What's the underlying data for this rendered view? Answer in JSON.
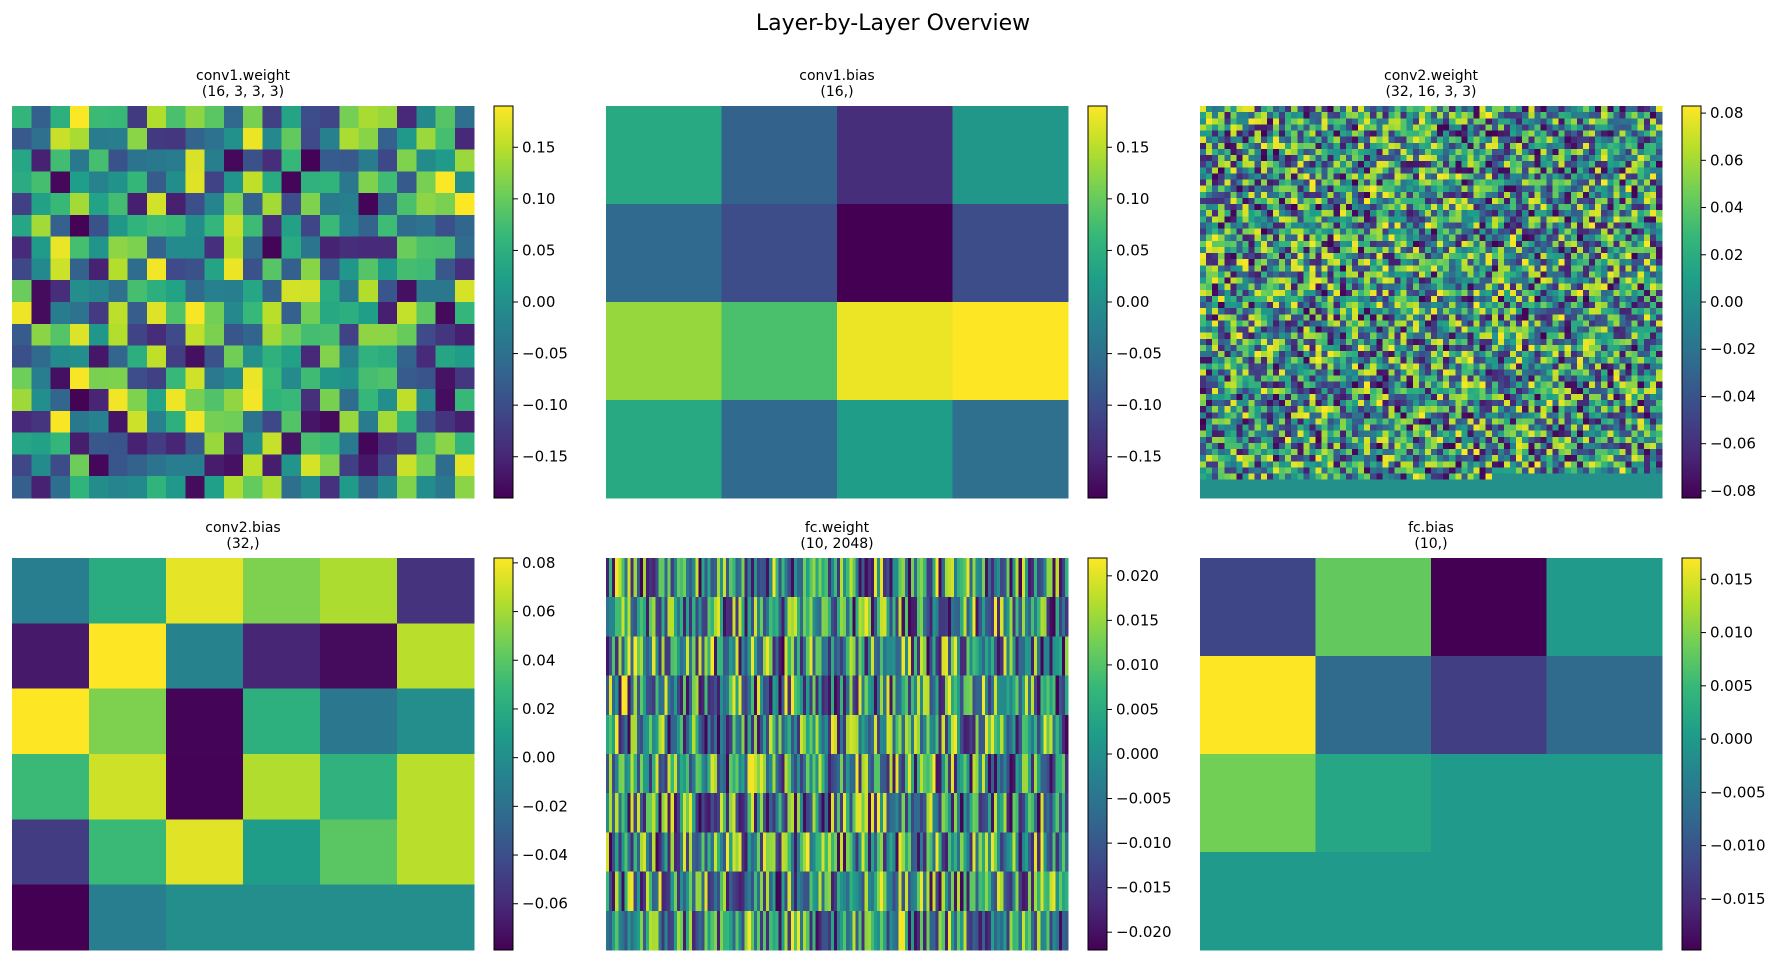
{
  "figure": {
    "title": "Layer-by-Layer Overview"
  },
  "colormap": {
    "name": "viridis",
    "stops": [
      "#440154",
      "#482878",
      "#3e4989",
      "#31688e",
      "#26828e",
      "#1f9e89",
      "#35b779",
      "#6ece58",
      "#b5de2b",
      "#fde725"
    ]
  },
  "chart_data": [
    {
      "type": "heatmap",
      "title": "conv1.weight",
      "subtitle": "(16, 3, 3, 3)",
      "grid": {
        "rows": 18,
        "cols": 24,
        "filled_cells": 432
      },
      "value_range": [
        -0.19,
        0.19
      ],
      "colorbar_ticks": [
        0.15,
        0.1,
        0.05,
        0.0,
        -0.05,
        -0.1,
        -0.15
      ],
      "colorbar_labels": [
        "0.15",
        "0.10",
        "0.05",
        "0.00",
        "−0.05",
        "−0.10",
        "−0.15"
      ],
      "values": "random"
    },
    {
      "type": "heatmap",
      "title": "conv1.bias",
      "subtitle": "(16,)",
      "grid": {
        "rows": 4,
        "cols": 4,
        "filled_cells": 16
      },
      "value_range": [
        -0.19,
        0.19
      ],
      "colorbar_ticks": [
        0.15,
        0.1,
        0.05,
        0.0,
        -0.05,
        -0.1,
        -0.15
      ],
      "colorbar_labels": [
        "0.15",
        "0.10",
        "0.05",
        "0.00",
        "−0.05",
        "−0.10",
        "−0.15"
      ],
      "values": [
        [
          0.04,
          -0.07,
          -0.14,
          0.01
        ],
        [
          -0.06,
          -0.1,
          -0.19,
          -0.1
        ],
        [
          0.13,
          0.08,
          0.18,
          0.19
        ],
        [
          0.04,
          -0.06,
          0.02,
          -0.05
        ]
      ]
    },
    {
      "type": "heatmap",
      "title": "conv2.weight",
      "subtitle": "(32, 16, 3, 3)",
      "grid": {
        "rows": 64,
        "cols": 76,
        "filled_cells": 4608
      },
      "value_range": [
        -0.083,
        0.083
      ],
      "colorbar_ticks": [
        0.08,
        0.06,
        0.04,
        0.02,
        0.0,
        -0.02,
        -0.04,
        -0.06,
        -0.08
      ],
      "colorbar_labels": [
        "0.08",
        "0.06",
        "0.04",
        "0.02",
        "0.00",
        "−0.02",
        "−0.04",
        "−0.06",
        "−0.08"
      ],
      "values": "random"
    },
    {
      "type": "heatmap",
      "title": "conv2.bias",
      "subtitle": "(32,)",
      "grid": {
        "rows": 6,
        "cols": 6,
        "filled_cells": 32
      },
      "value_range": [
        -0.079,
        0.082
      ],
      "colorbar_ticks": [
        0.08,
        0.06,
        0.04,
        0.02,
        0.0,
        -0.02,
        -0.04,
        -0.06
      ],
      "colorbar_labels": [
        "0.08",
        "0.06",
        "0.04",
        "0.02",
        "0.00",
        "−0.02",
        "−0.04",
        "−0.06"
      ],
      "values": [
        [
          -0.01,
          0.02,
          0.076,
          0.05,
          0.062,
          -0.055
        ],
        [
          -0.068,
          0.082,
          -0.007,
          -0.062,
          -0.074,
          0.065
        ],
        [
          0.082,
          0.05,
          -0.077,
          0.023,
          -0.015,
          0.0
        ],
        [
          0.03,
          0.07,
          -0.078,
          0.063,
          0.024,
          0.065
        ],
        [
          -0.05,
          0.03,
          0.075,
          0.01,
          0.04,
          0.065
        ],
        [
          -0.079,
          -0.01,
          0.0,
          0.0,
          0.0,
          0.0
        ]
      ]
    },
    {
      "type": "heatmap",
      "title": "fc.weight",
      "subtitle": "(10, 2048)",
      "grid": {
        "rows": 10,
        "cols": 150,
        "filled_cells": 1500
      },
      "value_range": [
        -0.022,
        0.022
      ],
      "colorbar_ticks": [
        0.02,
        0.015,
        0.01,
        0.005,
        0.0,
        -0.005,
        -0.01,
        -0.015,
        -0.02
      ],
      "colorbar_labels": [
        "0.020",
        "0.015",
        "0.010",
        "0.005",
        "0.000",
        "−0.005",
        "−0.010",
        "−0.015",
        "−0.020"
      ],
      "values": "random"
    },
    {
      "type": "heatmap",
      "title": "fc.bias",
      "subtitle": "(10,)",
      "grid": {
        "rows": 4,
        "cols": 4,
        "filled_cells": 10
      },
      "value_range": [
        -0.0198,
        0.017
      ],
      "colorbar_ticks": [
        0.015,
        0.01,
        0.005,
        0.0,
        -0.005,
        -0.01,
        -0.015
      ],
      "colorbar_labels": [
        "0.015",
        "0.010",
        "0.005",
        "0.000",
        "−0.005",
        "−0.010",
        "−0.015"
      ],
      "values": [
        [
          -0.012,
          0.008,
          -0.0198,
          0.0
        ],
        [
          0.017,
          -0.007,
          -0.013,
          -0.007
        ],
        [
          0.009,
          0.002,
          0.0,
          0.0
        ],
        [
          0.0,
          0.0,
          0.0,
          0.0
        ]
      ]
    }
  ]
}
